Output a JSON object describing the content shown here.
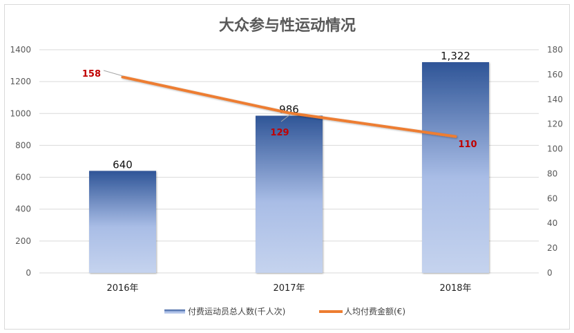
{
  "chart_data": {
    "type": "bar+line",
    "title": "大众参与性运动情况",
    "categories": [
      "2016年",
      "2017年",
      "2018年"
    ],
    "series": [
      {
        "name": "付费运动员总人数(千人次)",
        "type": "bar",
        "axis": "left",
        "values": [
          640,
          986,
          1322
        ],
        "labels": [
          "640",
          "986",
          "1,322"
        ],
        "color": "#2f5597"
      },
      {
        "name": "人均付费金额(€)",
        "type": "line",
        "axis": "right",
        "values": [
          158,
          129,
          110
        ],
        "labels": [
          "158",
          "129",
          "110"
        ],
        "color": "#ed7d31",
        "label_color": "#c00000"
      }
    ],
    "left_axis": {
      "min": 0,
      "max": 1400,
      "step": 200,
      "ticks": [
        "0",
        "200",
        "400",
        "600",
        "800",
        "1000",
        "1200",
        "1400"
      ]
    },
    "right_axis": {
      "min": 0,
      "max": 180,
      "step": 20,
      "ticks": [
        "0",
        "20",
        "40",
        "60",
        "80",
        "100",
        "120",
        "140",
        "160",
        "180"
      ]
    },
    "grid": true,
    "legend_position": "bottom"
  },
  "colors": {
    "bar_top": "#2f5597",
    "bar_mid": "#a9bde6",
    "bar_bottom": "#c5d3ee",
    "line": "#ed7d31",
    "line_label": "#c00000",
    "grid": "#d9d9d9"
  }
}
